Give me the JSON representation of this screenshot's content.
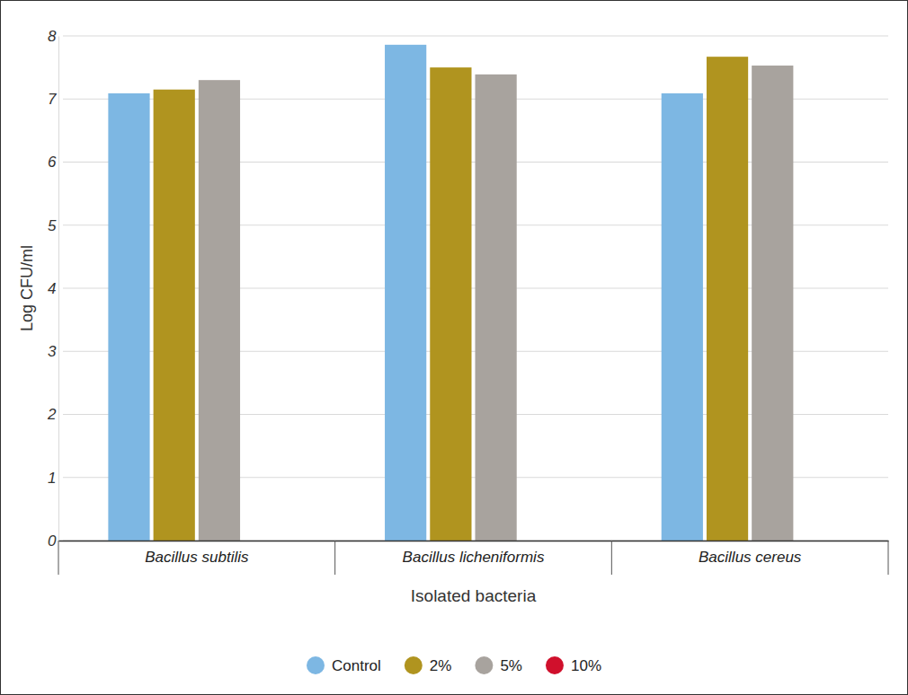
{
  "chart_data": {
    "type": "bar",
    "x_label": "Isolated bacteria",
    "y_label": "Log CFU/ml",
    "categories": [
      "Bacillus subtilis",
      "Bacillus licheniformis",
      "Bacillus cereus"
    ],
    "series": [
      {
        "name": "Control",
        "color": "#7db7e3",
        "values": [
          7.09,
          7.86,
          7.09
        ]
      },
      {
        "name": "2%",
        "color": "#b0941f",
        "values": [
          7.15,
          7.5,
          7.67
        ]
      },
      {
        "name": "5%",
        "color": "#a8a39e",
        "values": [
          7.3,
          7.39,
          7.53
        ]
      },
      {
        "name": "10%",
        "color": "#d0102c",
        "values": [
          null,
          null,
          null
        ]
      }
    ],
    "ylim": [
      0,
      8
    ],
    "yticks": [
      0,
      1,
      2,
      3,
      4,
      5,
      6,
      7,
      8
    ],
    "grid": true,
    "legend": "bottom"
  }
}
